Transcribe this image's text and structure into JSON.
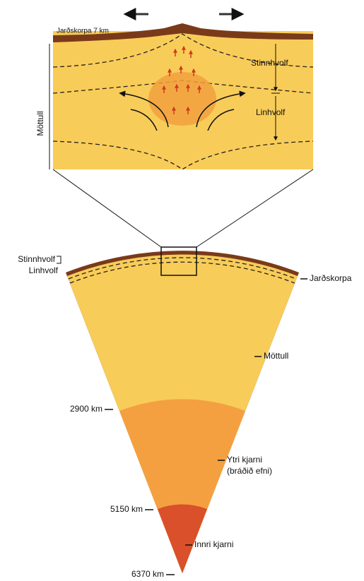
{
  "inset": {
    "crust_label": "Jarðskorpa 7 km",
    "upper_label": "Stinnhvolf",
    "lower_label": "Linhvolf",
    "mantle_label": "Möttull"
  },
  "section": {
    "upper_left": "Stinnhvolf",
    "lower_left": "Linhvolf",
    "crust": "Jarðskorpa",
    "mantle": "Möttull",
    "outer_core": "Ytri kjarni",
    "outer_core_note": "(bráðið efni)",
    "inner_core": "Innri kjarni",
    "depths": [
      "2900 km",
      "5150 km",
      "6370 km"
    ]
  }
}
